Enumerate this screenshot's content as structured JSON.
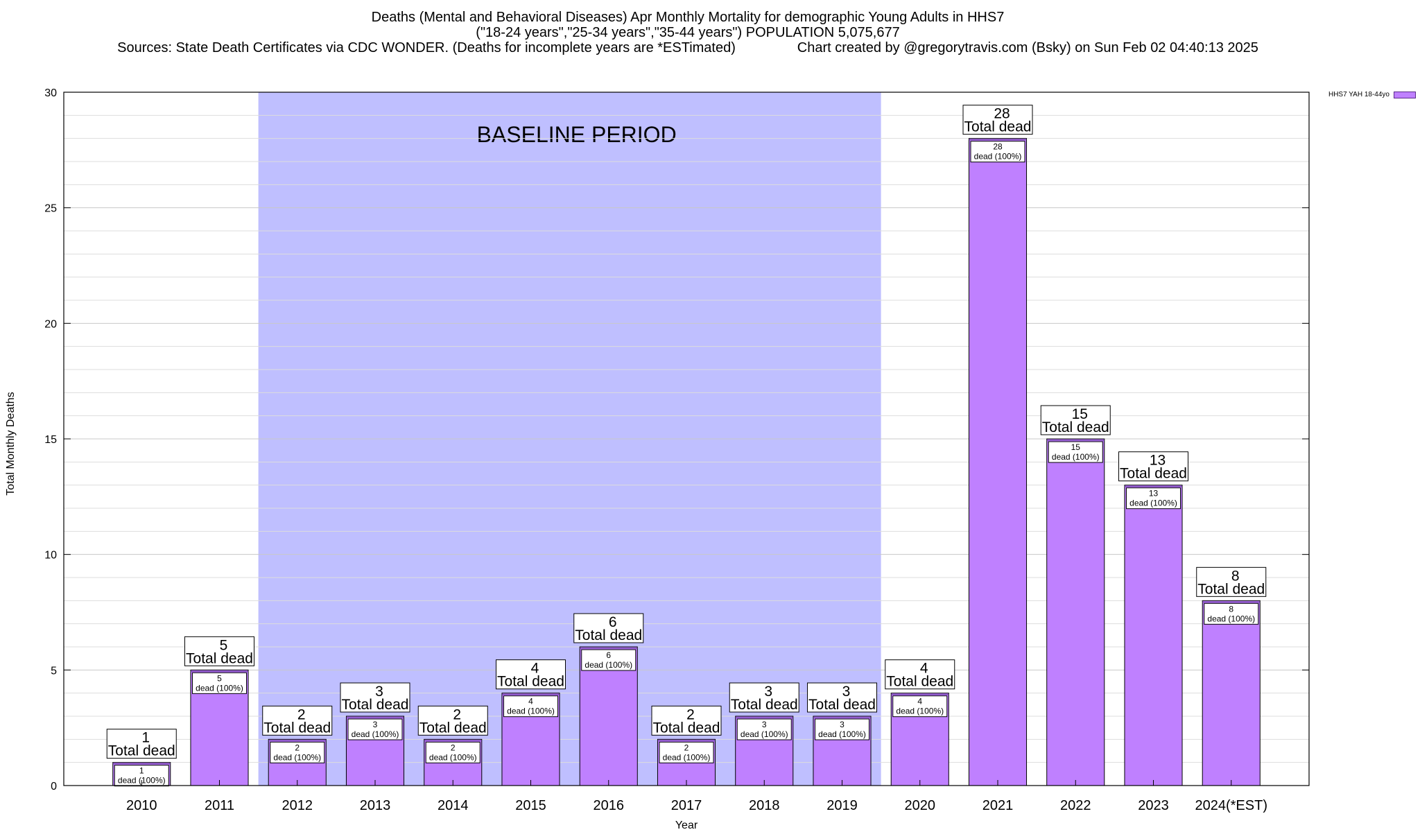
{
  "title_lines": [
    "Deaths (Mental and Behavioral Diseases) Apr Monthly Mortality for demographic Young Adults in HHS7",
    "(\"18-24 years\",\"25-34 years\",\"35-44 years\") POPULATION 5,075,677",
    "Sources: State Death Certificates via CDC WONDER. (Deaths for incomplete years are *ESTimated)                Chart created by @gregorytravis.com (Bsky) on Sun Feb 02 04:40:13 2025"
  ],
  "chart_data": {
    "type": "bar",
    "categories": [
      "2010",
      "2011",
      "2012",
      "2013",
      "2014",
      "2015",
      "2016",
      "2017",
      "2018",
      "2019",
      "2020",
      "2021",
      "2022",
      "2023",
      "2024(*EST)"
    ],
    "series": [
      {
        "name": "HHS7 YAH 18-44yo",
        "values": [
          1,
          5,
          2,
          3,
          2,
          4,
          6,
          2,
          3,
          3,
          4,
          28,
          15,
          13,
          8
        ]
      }
    ],
    "ylabel": "Total Monthly Deaths",
    "xlabel": "Year",
    "ylim": [
      0,
      30
    ],
    "yticks": [
      0,
      5,
      10,
      15,
      20,
      25,
      30
    ],
    "grid": true,
    "legend_position": "top-right",
    "bar_color": "#bf80ff",
    "baseline": {
      "label": "BASELINE PERIOD",
      "from": "2012",
      "to": "2019",
      "color": "#bfbfff"
    },
    "total_label_suffix": "Total dead",
    "inner_label_suffix": "dead (100%)"
  }
}
